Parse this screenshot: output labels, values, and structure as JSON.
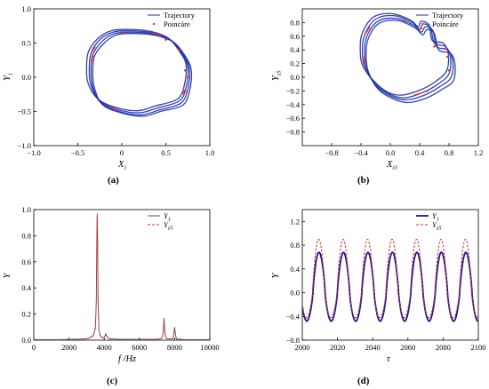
{
  "figure": {
    "colors": {
      "trajectory": "#1c2fa6",
      "poincare": "#e8362c",
      "series1": "#1a1a8c",
      "series2": "#d6333a",
      "axis": "#000000"
    }
  },
  "chart_data": [
    {
      "id": "a",
      "type": "scatter",
      "caption": "(a)",
      "xlabel": "X",
      "xlabel_sub": "1",
      "ylabel": "Y",
      "ylabel_sub": "1",
      "xlim": [
        -1.0,
        1.0
      ],
      "ylim": [
        -1.0,
        1.0
      ],
      "xticks": [
        -1.0,
        -0.5,
        0,
        0.5,
        1.0
      ],
      "xtick_labels": [
        "−1.0",
        "−0.5",
        "0",
        "0.5",
        "1.0"
      ],
      "yticks": [
        -1.0,
        -0.5,
        0,
        0.5,
        1.0
      ],
      "ytick_labels": [
        "−1.0",
        "−0.5",
        "0.0",
        "0.5",
        "1.0"
      ],
      "legend": {
        "position": "top-right",
        "entries": [
          {
            "label": "Trajectory",
            "style": "line",
            "color": "#1c2fa6"
          },
          {
            "label": "Poincáre",
            "style": "dot",
            "color": "#e8362c"
          }
        ]
      },
      "loops": [
        [
          [
            -0.35,
            0.35
          ],
          [
            -0.25,
            0.55
          ],
          [
            -0.1,
            0.66
          ],
          [
            0.1,
            0.68
          ],
          [
            0.35,
            0.65
          ],
          [
            0.55,
            0.55
          ],
          [
            0.68,
            0.35
          ],
          [
            0.75,
            0.15
          ],
          [
            0.73,
            -0.15
          ],
          [
            0.65,
            -0.35
          ],
          [
            0.4,
            -0.45
          ],
          [
            0.2,
            -0.52
          ],
          [
            -0.05,
            -0.47
          ],
          [
            -0.25,
            -0.35
          ],
          [
            -0.35,
            -0.12
          ],
          [
            -0.37,
            0.1
          ]
        ],
        [
          [
            -0.33,
            0.33
          ],
          [
            -0.22,
            0.53
          ],
          [
            -0.08,
            0.64
          ],
          [
            0.12,
            0.66
          ],
          [
            0.37,
            0.63
          ],
          [
            0.57,
            0.53
          ],
          [
            0.7,
            0.33
          ],
          [
            0.77,
            0.12
          ],
          [
            0.75,
            -0.17
          ],
          [
            0.67,
            -0.38
          ],
          [
            0.42,
            -0.48
          ],
          [
            0.22,
            -0.55
          ],
          [
            -0.03,
            -0.5
          ],
          [
            -0.24,
            -0.37
          ],
          [
            -0.33,
            -0.14
          ],
          [
            -0.35,
            0.08
          ]
        ],
        [
          [
            -0.38,
            0.37
          ],
          [
            -0.27,
            0.57
          ],
          [
            -0.12,
            0.68
          ],
          [
            0.08,
            0.7
          ],
          [
            0.33,
            0.67
          ],
          [
            0.53,
            0.57
          ],
          [
            0.66,
            0.37
          ],
          [
            0.73,
            0.18
          ],
          [
            0.71,
            -0.12
          ],
          [
            0.63,
            -0.32
          ],
          [
            0.38,
            -0.42
          ],
          [
            0.18,
            -0.49
          ],
          [
            -0.07,
            -0.44
          ],
          [
            -0.27,
            -0.32
          ],
          [
            -0.38,
            -0.1
          ],
          [
            -0.4,
            0.12
          ]
        ],
        [
          [
            -0.31,
            0.31
          ],
          [
            -0.2,
            0.5
          ],
          [
            -0.06,
            0.62
          ],
          [
            0.14,
            0.64
          ],
          [
            0.39,
            0.61
          ],
          [
            0.59,
            0.51
          ],
          [
            0.72,
            0.31
          ],
          [
            0.79,
            0.1
          ],
          [
            0.77,
            -0.2
          ],
          [
            0.69,
            -0.41
          ],
          [
            0.44,
            -0.5
          ],
          [
            0.24,
            -0.57
          ],
          [
            -0.01,
            -0.52
          ],
          [
            -0.22,
            -0.4
          ],
          [
            -0.31,
            -0.16
          ],
          [
            -0.33,
            0.06
          ]
        ]
      ],
      "poincare": [
        [
          0.5,
          0.55
        ],
        [
          0.65,
          0.4
        ],
        [
          0.72,
          0.1
        ],
        [
          0.75,
          0.0
        ],
        [
          0.72,
          -0.2
        ],
        [
          -0.33,
          0.25
        ],
        [
          -0.32,
          0.3
        ],
        [
          0.0,
          0.66
        ]
      ]
    },
    {
      "id": "b",
      "type": "scatter",
      "caption": "(b)",
      "xlabel": "X",
      "xlabel_sub": "z5",
      "ylabel": "Y",
      "ylabel_sub": "z5",
      "xlim": [
        -1.2,
        1.2
      ],
      "ylim": [
        -1.0,
        1.0
      ],
      "xticks": [
        -0.8,
        -0.4,
        0,
        0.4,
        0.8,
        1.2
      ],
      "xtick_labels": [
        "−0.8",
        "−0.4",
        "0.0",
        "0.4",
        "0.8",
        "1.2"
      ],
      "yticks": [
        -0.8,
        -0.6,
        -0.4,
        -0.2,
        0,
        0.2,
        0.4,
        0.6,
        0.8
      ],
      "ytick_labels": [
        "−0.8",
        "−0.6",
        "−0.4",
        "−0.2",
        "0.0",
        "0.2",
        "0.4",
        "0.6",
        "0.8"
      ],
      "legend": {
        "position": "top-right",
        "entries": [
          {
            "label": "Trajectory",
            "style": "line",
            "color": "#1c2fa6"
          },
          {
            "label": "Poincáre",
            "style": "dot",
            "color": "#e8362c"
          }
        ]
      },
      "loops": [
        [
          [
            -0.35,
            0.62
          ],
          [
            -0.2,
            0.85
          ],
          [
            0.05,
            0.9
          ],
          [
            0.3,
            0.8
          ],
          [
            0.4,
            0.7
          ],
          [
            0.45,
            0.78
          ],
          [
            0.55,
            0.72
          ],
          [
            0.6,
            0.5
          ],
          [
            0.75,
            0.45
          ],
          [
            0.82,
            0.3
          ],
          [
            0.8,
            0.05
          ],
          [
            0.65,
            -0.1
          ],
          [
            0.45,
            -0.22
          ],
          [
            0.2,
            -0.3
          ],
          [
            0.0,
            -0.25
          ],
          [
            -0.2,
            -0.1
          ],
          [
            -0.35,
            0.15
          ],
          [
            -0.38,
            0.4
          ]
        ],
        [
          [
            -0.32,
            0.6
          ],
          [
            -0.17,
            0.82
          ],
          [
            0.07,
            0.86
          ],
          [
            0.32,
            0.76
          ],
          [
            0.42,
            0.66
          ],
          [
            0.48,
            0.74
          ],
          [
            0.58,
            0.68
          ],
          [
            0.63,
            0.45
          ],
          [
            0.78,
            0.4
          ],
          [
            0.85,
            0.25
          ],
          [
            0.83,
            0.0
          ],
          [
            0.67,
            -0.14
          ],
          [
            0.47,
            -0.26
          ],
          [
            0.22,
            -0.33
          ],
          [
            0.02,
            -0.28
          ],
          [
            -0.18,
            -0.14
          ],
          [
            -0.32,
            0.12
          ],
          [
            -0.35,
            0.37
          ]
        ],
        [
          [
            -0.38,
            0.65
          ],
          [
            -0.23,
            0.88
          ],
          [
            0.02,
            0.93
          ],
          [
            0.27,
            0.84
          ],
          [
            0.38,
            0.74
          ],
          [
            0.42,
            0.82
          ],
          [
            0.53,
            0.76
          ],
          [
            0.57,
            0.54
          ],
          [
            0.72,
            0.5
          ],
          [
            0.79,
            0.35
          ],
          [
            0.77,
            0.1
          ],
          [
            0.62,
            -0.06
          ],
          [
            0.42,
            -0.18
          ],
          [
            0.17,
            -0.26
          ],
          [
            -0.03,
            -0.22
          ],
          [
            -0.22,
            -0.06
          ],
          [
            -0.38,
            0.18
          ],
          [
            -0.41,
            0.43
          ]
        ],
        [
          [
            -0.3,
            0.57
          ],
          [
            -0.15,
            0.79
          ],
          [
            0.1,
            0.83
          ],
          [
            0.34,
            0.72
          ],
          [
            0.44,
            0.62
          ],
          [
            0.5,
            0.7
          ],
          [
            0.6,
            0.64
          ],
          [
            0.66,
            0.4
          ],
          [
            0.82,
            0.35
          ],
          [
            0.88,
            0.2
          ],
          [
            0.86,
            -0.05
          ],
          [
            0.7,
            -0.18
          ],
          [
            0.5,
            -0.3
          ],
          [
            0.25,
            -0.37
          ],
          [
            0.05,
            -0.32
          ],
          [
            -0.16,
            -0.18
          ],
          [
            -0.3,
            0.08
          ],
          [
            -0.33,
            0.33
          ]
        ]
      ],
      "poincare": [
        [
          0.1,
          0.9
        ],
        [
          0.2,
          0.85
        ],
        [
          0.42,
          0.72
        ],
        [
          0.6,
          0.45
        ],
        [
          0.78,
          0.3
        ],
        [
          0.8,
          0.1
        ],
        [
          -0.35,
          0.3
        ],
        [
          0.5,
          -0.2
        ]
      ]
    },
    {
      "id": "c",
      "type": "line",
      "caption": "(c)",
      "xlabel": "f /Hz",
      "ylabel": "Y",
      "xlim": [
        0,
        10000
      ],
      "ylim": [
        0,
        1.0
      ],
      "xticks": [
        0,
        2000,
        4000,
        6000,
        8000,
        10000
      ],
      "xtick_labels": [
        "0",
        "2000",
        "4000",
        "6000",
        "8000",
        "10000"
      ],
      "yticks": [
        0,
        0.2,
        0.4,
        0.6,
        0.8,
        1.0
      ],
      "ytick_labels": [
        "0.0",
        "0.2",
        "0.4",
        "0.6",
        "0.8",
        "1.0"
      ],
      "legend": {
        "position": "top-right",
        "entries": [
          {
            "label": "Y",
            "sub": "1",
            "style": "solid",
            "color": "#555555"
          },
          {
            "label": "Y",
            "sub": "z5",
            "style": "dashed",
            "color": "#d6333a"
          }
        ]
      },
      "series": [
        {
          "name": "Y1",
          "color": "#555555",
          "dash": false,
          "x": [
            0,
            500,
            1000,
            1500,
            2000,
            2500,
            3000,
            3200,
            3400,
            3500,
            3550,
            3580,
            3600,
            3620,
            3650,
            3700,
            3800,
            3900,
            4000,
            4100,
            4150,
            4200,
            4300,
            5000,
            6000,
            7000,
            7200,
            7300,
            7350,
            7400,
            7450,
            7500,
            7600,
            7900,
            7950,
            8000,
            8050,
            8100,
            8500,
            9000,
            10000
          ],
          "y": [
            0.005,
            0.005,
            0.005,
            0.005,
            0.006,
            0.008,
            0.01,
            0.02,
            0.04,
            0.1,
            0.3,
            0.8,
            0.97,
            0.85,
            0.3,
            0.08,
            0.03,
            0.02,
            0.02,
            0.05,
            0.03,
            0.02,
            0.01,
            0.006,
            0.006,
            0.008,
            0.01,
            0.02,
            0.06,
            0.17,
            0.06,
            0.02,
            0.01,
            0.01,
            0.05,
            0.1,
            0.04,
            0.01,
            0.005,
            0.005,
            0.005
          ]
        },
        {
          "name": "Yz5",
          "color": "#d6333a",
          "dash": true,
          "x": [
            0,
            500,
            1000,
            1500,
            2000,
            2500,
            3000,
            3200,
            3400,
            3500,
            3550,
            3580,
            3600,
            3620,
            3650,
            3700,
            3800,
            3900,
            4000,
            4100,
            4150,
            4200,
            4300,
            5000,
            6000,
            7000,
            7200,
            7300,
            7350,
            7400,
            7450,
            7500,
            7600,
            7900,
            7950,
            8000,
            8050,
            8100,
            8500,
            9000,
            10000
          ],
          "y": [
            0.004,
            0.004,
            0.004,
            0.004,
            0.005,
            0.007,
            0.009,
            0.018,
            0.035,
            0.09,
            0.28,
            0.75,
            0.95,
            0.8,
            0.28,
            0.07,
            0.025,
            0.018,
            0.018,
            0.045,
            0.028,
            0.018,
            0.009,
            0.005,
            0.005,
            0.007,
            0.009,
            0.018,
            0.05,
            0.14,
            0.05,
            0.018,
            0.009,
            0.009,
            0.04,
            0.08,
            0.035,
            0.009,
            0.004,
            0.004,
            0.004
          ]
        }
      ]
    },
    {
      "id": "d",
      "type": "line",
      "caption": "(d)",
      "xlabel": "τ",
      "ylabel": "Y",
      "xlim": [
        2000,
        2100
      ],
      "ylim": [
        -0.8,
        1.4
      ],
      "xticks": [
        2000,
        2020,
        2040,
        2060,
        2080,
        2100
      ],
      "xtick_labels": [
        "2000",
        "2020",
        "2040",
        "2060",
        "2080",
        "2100"
      ],
      "yticks": [
        -0.8,
        -0.4,
        0,
        0.4,
        0.8,
        1.2
      ],
      "ytick_labels": [
        "−0.8",
        "−0.4",
        "0.0",
        "0.4",
        "0.8",
        "1.2"
      ],
      "legend": {
        "position": "top-right",
        "entries": [
          {
            "label": "Y",
            "sub": "1",
            "style": "solid",
            "color": "#1a1a8c"
          },
          {
            "label": "Y",
            "sub": "z5",
            "style": "dotted",
            "color": "#d6333a"
          }
        ]
      },
      "series": [
        {
          "name": "Y1",
          "color": "#1a1a8c",
          "dash": false,
          "period": 13.9,
          "phase": 2009.5,
          "amp_pos": 0.68,
          "amp_neg": -0.48
        },
        {
          "name": "Yz5",
          "color": "#d6333a",
          "dash": true,
          "period": 13.9,
          "phase": 2009.3,
          "amp_pos": 0.9,
          "amp_neg": -0.42
        }
      ]
    }
  ]
}
